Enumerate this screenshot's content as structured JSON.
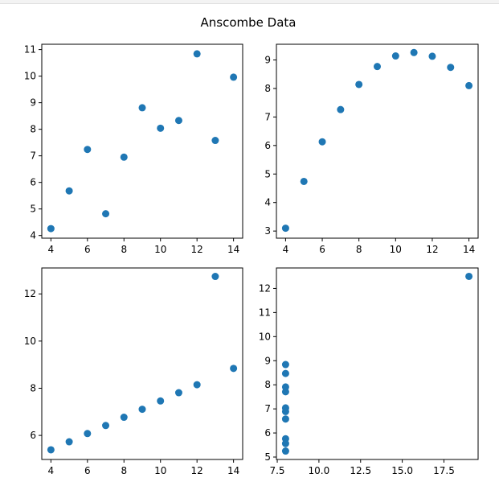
{
  "figure": {
    "title": "Anscombe Data"
  },
  "marker_color": "#1f77b4",
  "chart_data": [
    {
      "type": "scatter",
      "x": [
        10,
        8,
        13,
        9,
        11,
        14,
        6,
        4,
        12,
        7,
        5
      ],
      "y": [
        8.04,
        6.95,
        7.58,
        8.81,
        8.33,
        9.96,
        7.24,
        4.26,
        10.84,
        4.82,
        5.68
      ],
      "xlim": [
        3.5,
        14.5
      ],
      "ylim": [
        3.9,
        11.2
      ],
      "xticks": [
        4,
        6,
        8,
        10,
        12,
        14
      ],
      "xtick_labels": [
        "4",
        "6",
        "8",
        "10",
        "12",
        "14"
      ],
      "yticks": [
        4,
        5,
        6,
        7,
        8,
        9,
        10,
        11
      ],
      "ytick_labels": [
        "4",
        "5",
        "6",
        "7",
        "8",
        "9",
        "10",
        "11"
      ],
      "grid": false
    },
    {
      "type": "scatter",
      "x": [
        10,
        8,
        13,
        9,
        11,
        14,
        6,
        4,
        12,
        7,
        5
      ],
      "y": [
        9.14,
        8.14,
        8.74,
        8.77,
        9.26,
        8.1,
        6.13,
        3.1,
        9.13,
        7.26,
        4.74
      ],
      "xlim": [
        3.5,
        14.5
      ],
      "ylim": [
        2.75,
        9.55
      ],
      "xticks": [
        4,
        6,
        8,
        10,
        12,
        14
      ],
      "xtick_labels": [
        "4",
        "6",
        "8",
        "10",
        "12",
        "14"
      ],
      "yticks": [
        3,
        4,
        5,
        6,
        7,
        8,
        9
      ],
      "ytick_labels": [
        "3",
        "4",
        "5",
        "6",
        "7",
        "8",
        "9"
      ],
      "grid": false
    },
    {
      "type": "scatter",
      "x": [
        10,
        8,
        13,
        9,
        11,
        14,
        6,
        4,
        12,
        7,
        5
      ],
      "y": [
        7.46,
        6.77,
        12.74,
        7.11,
        7.81,
        8.84,
        6.08,
        5.39,
        8.15,
        6.42,
        5.73
      ],
      "xlim": [
        3.5,
        14.5
      ],
      "ylim": [
        4.98,
        13.1
      ],
      "xticks": [
        4,
        6,
        8,
        10,
        12,
        14
      ],
      "xtick_labels": [
        "4",
        "6",
        "8",
        "10",
        "12",
        "14"
      ],
      "yticks": [
        6,
        8,
        10,
        12
      ],
      "ytick_labels": [
        "6",
        "8",
        "10",
        "12"
      ],
      "grid": false
    },
    {
      "type": "scatter",
      "x": [
        8,
        8,
        8,
        8,
        8,
        8,
        8,
        19,
        8,
        8,
        8
      ],
      "y": [
        6.58,
        5.76,
        7.71,
        8.84,
        8.47,
        7.04,
        5.25,
        12.5,
        5.56,
        7.91,
        6.89
      ],
      "xlim": [
        7.45,
        19.55
      ],
      "ylim": [
        4.9,
        12.85
      ],
      "xticks": [
        7.5,
        10.0,
        12.5,
        15.0,
        17.5
      ],
      "xtick_labels": [
        "7.5",
        "10.0",
        "12.5",
        "15.0",
        "17.5"
      ],
      "yticks": [
        5,
        6,
        7,
        8,
        9,
        10,
        11,
        12
      ],
      "ytick_labels": [
        "5",
        "6",
        "7",
        "8",
        "9",
        "10",
        "11",
        "12"
      ],
      "grid": false
    }
  ]
}
